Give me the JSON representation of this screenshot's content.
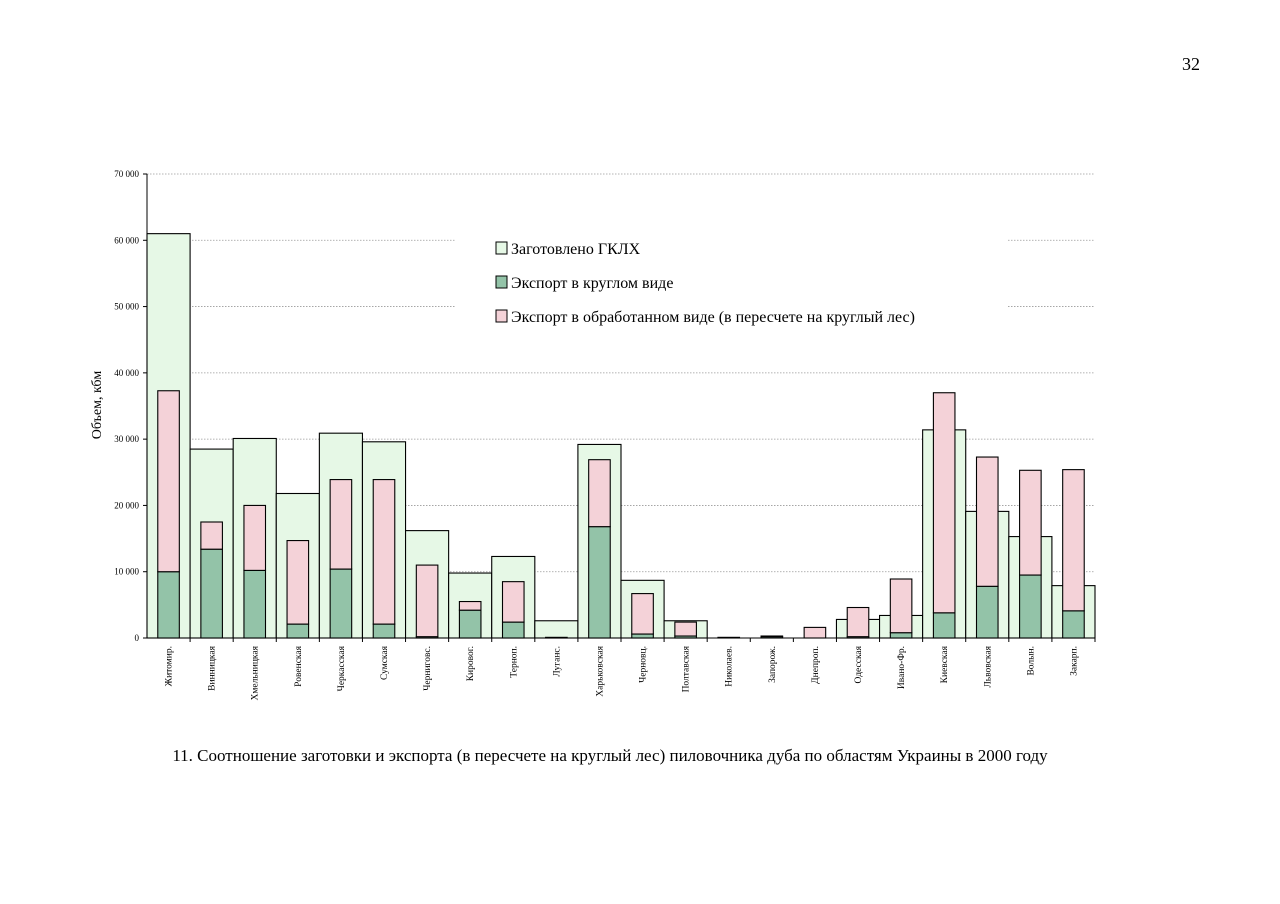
{
  "page": {
    "number": "32"
  },
  "caption": "11. Соотношение заготовки и экспорта (в пересчете на круглый лес) пиловочника дуба по областям Украины в 2000 году",
  "colors": {
    "harvest": "#e6f8e6",
    "export_round": "#93c3a8",
    "export_processed": "#f4d2d8",
    "grid": "#9a9a9a",
    "bar_stroke": "#000000"
  },
  "chart_data": {
    "type": "bar",
    "title": "",
    "xlabel": "",
    "ylabel": "Объем, кбм",
    "ylim": [
      0,
      70000
    ],
    "yticks": [
      0,
      10000,
      20000,
      30000,
      40000,
      50000,
      60000,
      70000
    ],
    "ytick_labels": [
      "0",
      "10 000",
      "20 000",
      "30 000",
      "40 000",
      "50 000",
      "60 000",
      "70 000"
    ],
    "grid": true,
    "legend_position": "top-center",
    "categories": [
      "Житомир.",
      "Винницкая",
      "Хмельницкая",
      "Ровенская",
      "Черкасская",
      "Сумская",
      "Черниговс.",
      "Кировог.",
      "Терноп.",
      "Луганс.",
      "Харьковская",
      "Черновц.",
      "Полтавская",
      "Николаев.",
      "Запорож.",
      "Днепроп.",
      "Одесская",
      "Ивано-Фр.",
      "Киевская",
      "Львовская",
      "Волын.",
      "Закарп."
    ],
    "series": [
      {
        "name": "Заготовлено ГКЛХ",
        "role": "harvest",
        "values": [
          61000,
          28500,
          30100,
          21800,
          30900,
          29600,
          16200,
          9800,
          12300,
          2600,
          29200,
          8700,
          2600,
          0,
          0,
          0,
          2800,
          3400,
          31400,
          19100,
          15300,
          7900
        ]
      },
      {
        "name": "Экспорт в круглом виде",
        "role": "export_round",
        "values": [
          10000,
          13400,
          10200,
          2100,
          10400,
          2100,
          200,
          4200,
          2400,
          100,
          16800,
          600,
          300,
          100,
          200,
          0,
          200,
          800,
          3800,
          7800,
          9500,
          4100
        ]
      },
      {
        "name": "Экспорт в обработанном виде (в пересчете на круглый лес)",
        "role": "export_processed",
        "values": [
          27300,
          4100,
          9800,
          12600,
          13500,
          21800,
          10800,
          1300,
          6100,
          0,
          10100,
          6100,
          2100,
          0,
          100,
          1600,
          4400,
          8100,
          33200,
          19500,
          15800,
          21300
        ]
      }
    ]
  }
}
